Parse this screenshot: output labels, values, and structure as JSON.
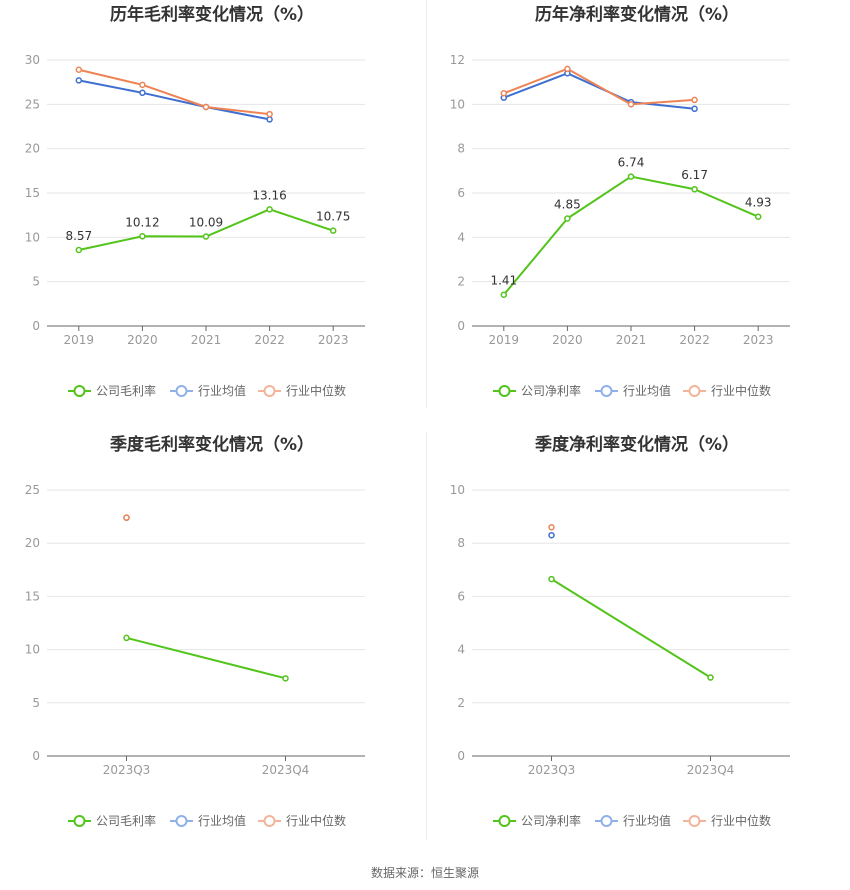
{
  "colors": {
    "company": "#52c41a",
    "industry_avg": "#3e6fd1",
    "industry_median": "#ee8455",
    "legend_avg": "#8fb0ea",
    "legend_median": "#f3b49a",
    "grid": "#e6e6e6",
    "axis": "#666666"
  },
  "source": "数据来源：恒生聚源",
  "chart_data": [
    {
      "type": "line",
      "title": "历年毛利率变化情况（%）",
      "categories": [
        "2019",
        "2020",
        "2021",
        "2022",
        "2023"
      ],
      "ylim": [
        0,
        30
      ],
      "yticks": [
        0,
        5,
        10,
        15,
        20,
        25,
        30
      ],
      "grid": true,
      "legend_position": "bottom",
      "series": [
        {
          "name": "公司毛利率",
          "role": "company",
          "values": [
            8.57,
            10.12,
            10.09,
            13.16,
            10.75
          ],
          "labels": [
            "8.57",
            "10.12",
            "10.09",
            "13.16",
            "10.75"
          ]
        },
        {
          "name": "行业均值",
          "role": "industry_avg",
          "values": [
            27.7,
            26.3,
            24.7,
            23.3,
            null
          ]
        },
        {
          "name": "行业中位数",
          "role": "industry_median",
          "values": [
            28.9,
            27.2,
            24.7,
            23.9,
            null
          ]
        }
      ]
    },
    {
      "type": "line",
      "title": "历年净利率变化情况（%）",
      "categories": [
        "2019",
        "2020",
        "2021",
        "2022",
        "2023"
      ],
      "ylim": [
        0,
        12
      ],
      "yticks": [
        0,
        2,
        4,
        6,
        8,
        10,
        12
      ],
      "grid": true,
      "legend_position": "bottom",
      "series": [
        {
          "name": "公司净利率",
          "role": "company",
          "values": [
            1.41,
            4.85,
            6.74,
            6.17,
            4.93
          ],
          "labels": [
            "1.41",
            "4.85",
            "6.74",
            "6.17",
            "4.93"
          ]
        },
        {
          "name": "行业均值",
          "role": "industry_avg",
          "values": [
            10.3,
            11.4,
            10.1,
            9.8,
            null
          ]
        },
        {
          "name": "行业中位数",
          "role": "industry_median",
          "values": [
            10.5,
            11.6,
            10.0,
            10.2,
            null
          ]
        }
      ]
    },
    {
      "type": "line",
      "title": "季度毛利率变化情况（%）",
      "categories": [
        "2023Q3",
        "2023Q4"
      ],
      "ylim": [
        0,
        25
      ],
      "yticks": [
        0,
        5,
        10,
        15,
        20,
        25
      ],
      "grid": true,
      "legend_position": "bottom",
      "series": [
        {
          "name": "公司毛利率",
          "role": "company",
          "values": [
            11.1,
            7.3
          ]
        },
        {
          "name": "行业均值",
          "role": "industry_avg",
          "values": [
            22.4,
            null
          ]
        },
        {
          "name": "行业中位数",
          "role": "industry_median",
          "values": [
            22.4,
            null
          ]
        }
      ]
    },
    {
      "type": "line",
      "title": "季度净利率变化情况（%）",
      "categories": [
        "2023Q3",
        "2023Q4"
      ],
      "ylim": [
        0,
        10
      ],
      "yticks": [
        0,
        2,
        4,
        6,
        8,
        10
      ],
      "grid": true,
      "legend_position": "bottom",
      "series": [
        {
          "name": "公司净利率",
          "role": "company",
          "values": [
            6.65,
            2.95
          ]
        },
        {
          "name": "行业均值",
          "role": "industry_avg",
          "values": [
            8.3,
            null
          ]
        },
        {
          "name": "行业中位数",
          "role": "industry_median",
          "values": [
            8.6,
            null
          ]
        }
      ]
    }
  ]
}
